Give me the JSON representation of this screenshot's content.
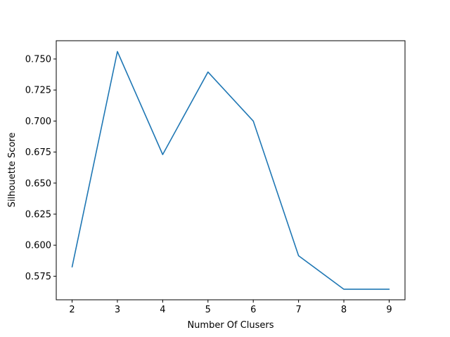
{
  "chart_data": {
    "type": "line",
    "title": "",
    "xlabel": "Number Of Clusers",
    "ylabel": "Silhouette Score",
    "x": [
      2,
      3,
      4,
      5,
      6,
      7,
      8,
      9
    ],
    "series": [
      {
        "values": [
          0.5825,
          0.756,
          0.673,
          0.7395,
          0.7,
          0.5915,
          0.5645,
          0.5645
        ]
      }
    ],
    "xlim": [
      1.65,
      9.35
    ],
    "ylim": [
      0.556,
      0.7647
    ],
    "x_ticks": [
      2,
      3,
      4,
      5,
      6,
      7,
      8,
      9
    ],
    "x_tick_labels": [
      "2",
      "3",
      "4",
      "5",
      "6",
      "7",
      "8",
      "9"
    ],
    "y_ticks": [
      0.575,
      0.6,
      0.625,
      0.65,
      0.675,
      0.7,
      0.725,
      0.75
    ],
    "y_tick_labels": [
      "0.575",
      "0.600",
      "0.625",
      "0.650",
      "0.675",
      "0.700",
      "0.725",
      "0.750"
    ],
    "grid": false,
    "legend": "none",
    "colors": {
      "line": "#1f77b4",
      "axes": "#000000",
      "background": "#ffffff"
    }
  }
}
